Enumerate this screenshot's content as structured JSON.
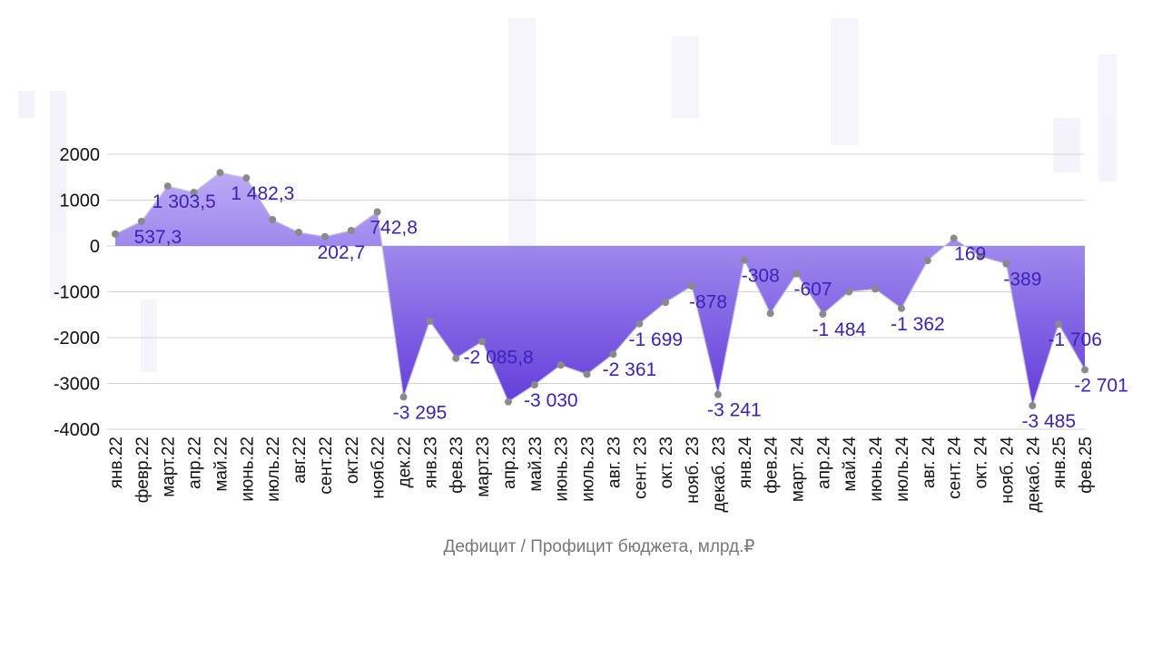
{
  "chart_data": {
    "type": "area",
    "x_label": "Дефицит / Профицит бюджета, млрд.₽",
    "categories": [
      "янв.22",
      "февр.22",
      "март.22",
      "апр.22",
      "май.22",
      "июнь.22",
      "июль.22",
      "авг.22",
      "сент.22",
      "окт.22",
      "нояб.22",
      "дек.22",
      "янв.23",
      "фев.23",
      "март.23",
      "апр.23",
      "май.23",
      "июнь.23",
      "июль.23",
      "авг. 23",
      "сент. 23",
      "окт. 23",
      "нояб. 23",
      "декаб. 23",
      "янв.24",
      "фев.24",
      "март. 24",
      "апр.24",
      "май.24",
      "июнь.24",
      "июль.24",
      "авг. 24",
      "сент. 24",
      "окт. 24",
      "нояб. 24",
      "декаб. 24",
      "янв.25",
      "фев.25"
    ],
    "values": [
      260,
      537.3,
      1303.5,
      1168,
      1600,
      1482.3,
      574,
      297,
      202.7,
      337,
      742.8,
      -3295,
      -1643,
      -2450,
      -2085.8,
      -3400,
      -3030,
      -2600,
      -2800,
      -2361,
      -1699,
      -1230,
      -878,
      -3241,
      -308,
      -1470,
      -607,
      -1484,
      -1000,
      -940,
      -1362,
      -320,
      169,
      -230,
      -389,
      -3485,
      -1706,
      -2701
    ],
    "value_labels": [
      null,
      "537,3",
      "1 303,5",
      null,
      null,
      "1 482,3",
      null,
      null,
      "202,7",
      null,
      "742,8",
      "-3 295",
      null,
      null,
      "-2 085,8",
      null,
      "-3 030",
      null,
      null,
      "-2 361",
      "-1 699",
      null,
      "-878",
      "-3 241",
      "-308",
      null,
      "-607",
      "-1 484",
      null,
      null,
      "-1 362",
      null,
      "169",
      null,
      "-389",
      "-3 485",
      "-1 706",
      "-2 701"
    ],
    "color": "#7b5ce0",
    "ylim": [
      -4000,
      2000
    ],
    "yticks": [
      2000,
      1000,
      0,
      -1000,
      -2000,
      -3000,
      -4000
    ],
    "grid": true
  }
}
